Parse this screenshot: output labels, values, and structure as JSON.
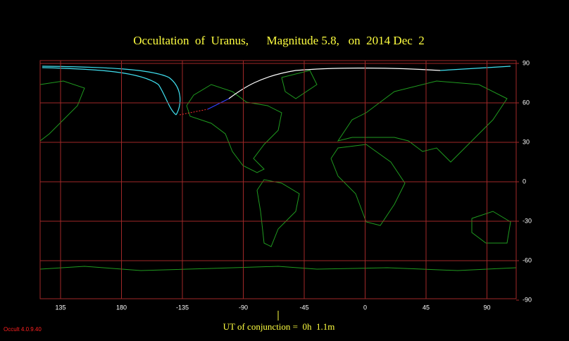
{
  "title": "Occultation  of  Uranus,      Magnitude 5.8,   on  2014 Dec  2",
  "latitude_ticks": [
    90,
    60,
    30,
    0,
    -30,
    -60,
    -90
  ],
  "longitude_ticks": [
    135,
    180,
    -135,
    -90,
    -45,
    0,
    45,
    90
  ],
  "conjunction_label": "UT of conjunction =  0h  1.1m",
  "version": "Occult 4.0.9.40"
}
